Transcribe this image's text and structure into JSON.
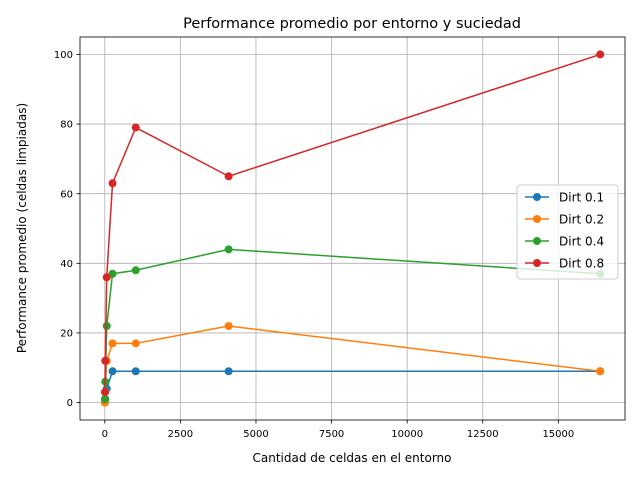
{
  "chart_data": {
    "type": "line",
    "title": "Performance promedio por entorno y suciedad",
    "xlabel": "Cantidad de celdas en el entorno",
    "ylabel": "Performance promedio (celdas limpiadas)",
    "xlim": [
      -820,
      17204
    ],
    "ylim": [
      -5,
      105
    ],
    "xticks": [
      0,
      2500,
      5000,
      7500,
      10000,
      12500,
      15000
    ],
    "xtick_labels": [
      "0",
      "2500",
      "5000",
      "7500",
      "10000",
      "12500",
      "15000"
    ],
    "yticks": [
      0,
      20,
      40,
      60,
      80,
      100
    ],
    "ytick_labels": [
      "0",
      "20",
      "40",
      "60",
      "80",
      "100"
    ],
    "grid": true,
    "legend_position": "center-right",
    "x": [
      4,
      16,
      64,
      256,
      1024,
      4096,
      16384
    ],
    "series": [
      {
        "name": "Dirt 0.1",
        "color": "#1f77b4",
        "values": [
          0,
          1,
          4,
          9,
          9,
          9,
          9
        ]
      },
      {
        "name": "Dirt 0.2",
        "color": "#ff7f0e",
        "values": [
          0,
          3,
          12,
          17,
          17,
          22,
          9
        ]
      },
      {
        "name": "Dirt 0.4",
        "color": "#2ca02c",
        "values": [
          1,
          6,
          22,
          37,
          38,
          44,
          37
        ]
      },
      {
        "name": "Dirt 0.8",
        "color": "#d62728",
        "values": [
          3,
          12,
          36,
          63,
          79,
          65,
          100
        ]
      }
    ]
  }
}
